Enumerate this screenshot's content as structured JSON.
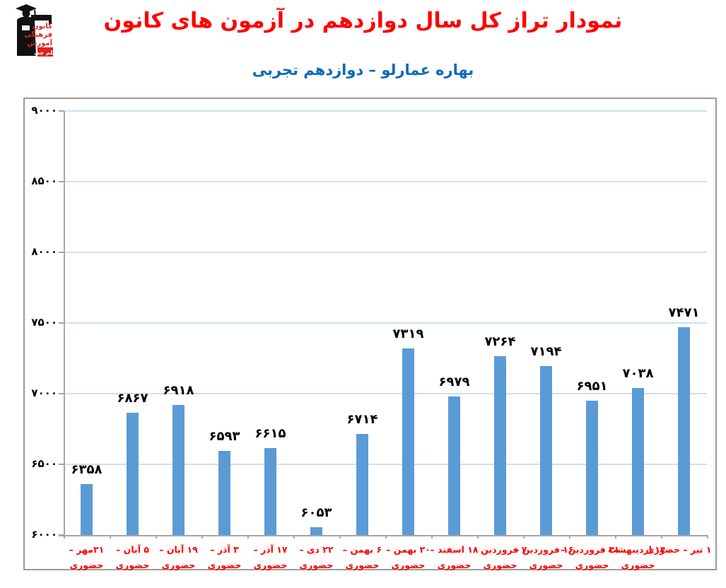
{
  "header": {
    "title": "نمودار تراز کل سال دوازدهم در آزمون های کانون",
    "subtitle": "بهاره عمارلو – دوازدهم تجربی",
    "logo": {
      "line1": "کانون",
      "line2": "فرهنگی",
      "line3": "آموزش",
      "badge": "قلم چی"
    }
  },
  "colors": {
    "title_red": "#fe0000",
    "subtitle_blue": "#0b6ab8",
    "bar_blue": "#5b9bd5",
    "gridline_blue": "#cde0f2",
    "axis_gray": "#a6a6a6",
    "x_label_red": "#fe0000",
    "value_label_black": "#000000"
  },
  "chart_data": {
    "type": "bar",
    "title": "نمودار تراز کل سال دوازدهم در آزمون های کانون",
    "subtitle": "بهاره عمارلو – دوازدهم تجربی",
    "ylim": [
      6000,
      9000
    ],
    "ytick_interval": 500,
    "grid": true,
    "legend": false,
    "bar_color": "#5b9bd5",
    "yticks": [
      {
        "value": 9000,
        "label_fa": "۹۰۰۰"
      },
      {
        "value": 8500,
        "label_fa": "۸۵۰۰"
      },
      {
        "value": 8000,
        "label_fa": "۸۰۰۰"
      },
      {
        "value": 7500,
        "label_fa": "۷۵۰۰"
      },
      {
        "value": 7000,
        "label_fa": "۷۰۰۰"
      },
      {
        "value": 6500,
        "label_fa": "۶۵۰۰"
      },
      {
        "value": 6000,
        "label_fa": "۶۰۰۰"
      }
    ],
    "categories": [
      "۲۱مهر – حضوری",
      "۵ آبان – حضوری",
      "۱۹ آبان – حضوری",
      "۳ آذر – حضوری",
      "۱۷ آذر – حضوری",
      "۲۲ دی – حضوری",
      "۶ بهمن – حضوری",
      "۲۰ بهمن – حضوری",
      "۱۸ اسفند – حضوری",
      "۷ فروردین – حضوری",
      "۱۶ فروردین – حضوری",
      "۳۱ فروردین – حضوری",
      "۱۴ اردیبهشت – حضوری",
      "۱ تیر – حضوری"
    ],
    "values": [
      6358,
      6867,
      6918,
      6593,
      6615,
      6053,
      6714,
      7319,
      6979,
      7264,
      7194,
      6951,
      7038,
      7471
    ],
    "bars": [
      {
        "value": 6358,
        "value_fa": "۶۳۵۸",
        "label_line1": "۲۱مهر –",
        "label_line2": "حضوری"
      },
      {
        "value": 6867,
        "value_fa": "۶۸۶۷",
        "label_line1": "۵ آبان –",
        "label_line2": "حضوری"
      },
      {
        "value": 6918,
        "value_fa": "۶۹۱۸",
        "label_line1": "۱۹ آبان –",
        "label_line2": "حضوری"
      },
      {
        "value": 6593,
        "value_fa": "۶۵۹۳",
        "label_line1": "۳ آذر –",
        "label_line2": "حضوری"
      },
      {
        "value": 6615,
        "value_fa": "۶۶۱۵",
        "label_line1": "۱۷ آذر –",
        "label_line2": "حضوری"
      },
      {
        "value": 6053,
        "value_fa": "۶۰۵۳",
        "label_line1": "۲۲ دی –",
        "label_line2": "حضوری"
      },
      {
        "value": 6714,
        "value_fa": "۶۷۱۴",
        "label_line1": "۶ بهمن –",
        "label_line2": "حضوری"
      },
      {
        "value": 7319,
        "value_fa": "۷۳۱۹",
        "label_line1": "۲۰ بهمن –",
        "label_line2": "حضوری"
      },
      {
        "value": 6979,
        "value_fa": "۶۹۷۹",
        "label_line1": "۱۸ اسفند –",
        "label_line2": "حضوری"
      },
      {
        "value": 7264,
        "value_fa": "۷۲۶۴",
        "label_line1": "۷ فروردین –",
        "label_line2": "حضوری"
      },
      {
        "value": 7194,
        "value_fa": "۷۱۹۴",
        "label_line1": "۱۶ فروردین –",
        "label_line2": "حضوری"
      },
      {
        "value": 6951,
        "value_fa": "۶۹۵۱",
        "label_line1": "۳۱ فروردین –",
        "label_line2": "حضوری"
      },
      {
        "value": 7038,
        "value_fa": "۷۰۳۸",
        "label_line1": "۱۴ اردیبهشت –",
        "label_line2": "حضوری"
      },
      {
        "value": 7471,
        "value_fa": "۷۴۷۱",
        "label_line1": "۱ تیر – حضوری",
        "label_line2": ""
      }
    ]
  }
}
